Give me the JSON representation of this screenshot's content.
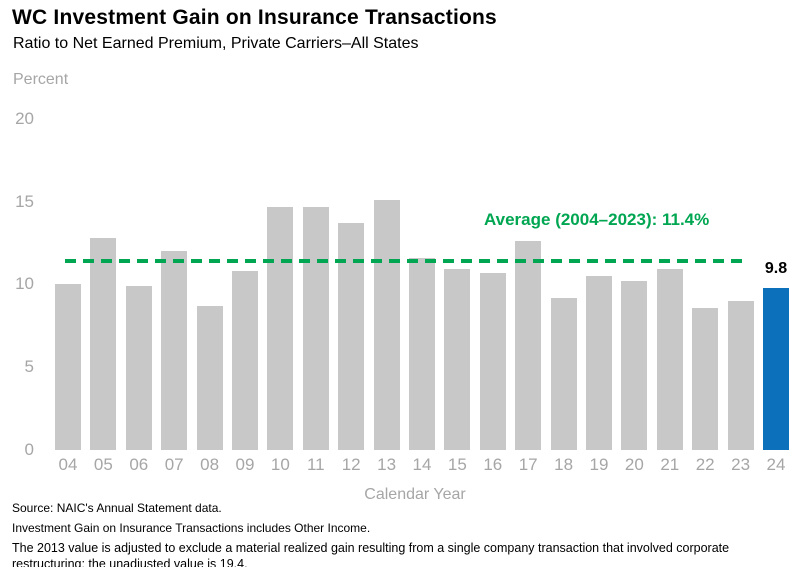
{
  "chart_data": {
    "type": "bar",
    "title": "WC Investment Gain on Insurance Transactions",
    "subtitle": "Ratio to Net Earned Premium, Private Carriers–All States",
    "ylabel": "Percent",
    "xlabel": "Calendar Year",
    "ylim": [
      0,
      20
    ],
    "yticks": [
      0,
      5,
      10,
      15,
      20
    ],
    "grid": false,
    "legend": "none",
    "categories": [
      "04",
      "05",
      "06",
      "07",
      "08",
      "09",
      "10",
      "11",
      "12",
      "13",
      "14",
      "15",
      "16",
      "17",
      "18",
      "19",
      "20",
      "21",
      "22",
      "23",
      "24"
    ],
    "values": [
      10.0,
      12.8,
      9.9,
      12.0,
      8.7,
      10.8,
      14.7,
      14.7,
      13.7,
      15.1,
      11.6,
      10.9,
      10.7,
      12.6,
      9.2,
      10.5,
      10.2,
      10.9,
      8.6,
      9.0,
      9.8
    ],
    "highlight_index": 20,
    "highlight_value_label": "9.8",
    "average": {
      "label": "Average (2004–2023): 11.4%",
      "value": 11.4
    },
    "colors": {
      "bar": "#C8C8C8",
      "highlight": "#0C70BA",
      "average": "#00A651",
      "axis_text": "#A6A6A6",
      "title_text": "#000000"
    }
  },
  "footnotes": [
    "Source: NAIC's Annual Statement data.",
    "Investment Gain on Insurance Transactions includes Other Income.",
    "The 2013 value is adjusted to exclude a material realized gain resulting from a single company transaction that involved corporate restructuring; the unadjusted value is 19.4."
  ]
}
